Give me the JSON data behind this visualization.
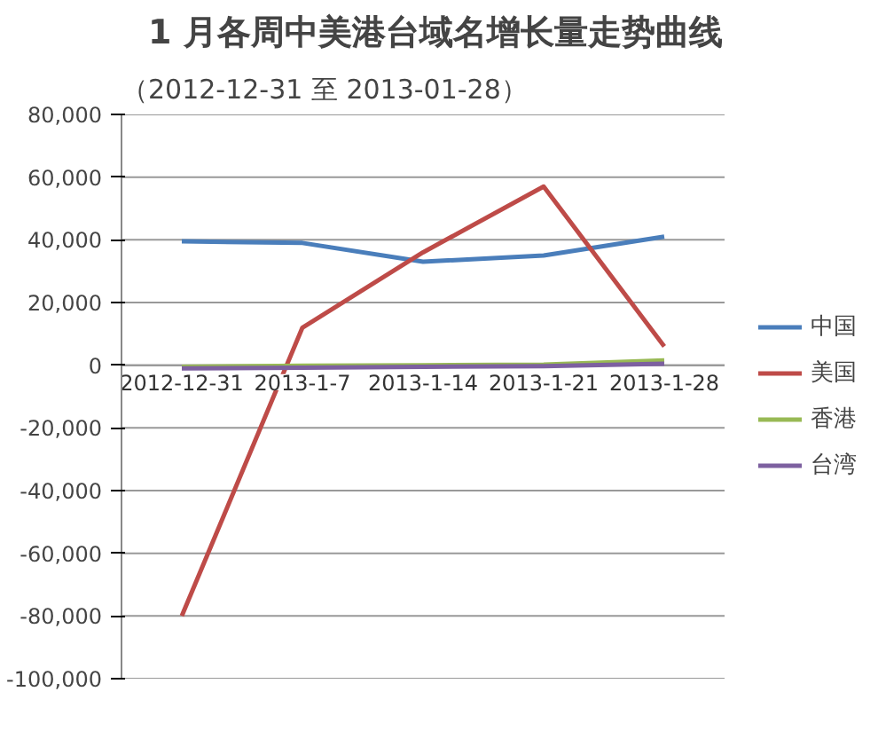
{
  "chart_data": {
    "type": "line",
    "title": "1 月各周中美港台域名增长量走势曲线",
    "subtitle": "（2012-12-31 至 2013-01-28）",
    "categories": [
      "2012-12-31",
      "2013-1-7",
      "2013-1-14",
      "2013-1-21",
      "2013-1-28"
    ],
    "series": [
      {
        "name": "中国",
        "color": "#4a7ebb",
        "values": [
          39500,
          39000,
          33000,
          35000,
          41000
        ]
      },
      {
        "name": "美国",
        "color": "#be4b48",
        "values": [
          -80000,
          12000,
          36000,
          57000,
          6000
        ]
      },
      {
        "name": "香港",
        "color": "#98b954",
        "values": [
          -500,
          -200,
          0,
          200,
          1500
        ]
      },
      {
        "name": "台湾",
        "color": "#7d60a0",
        "values": [
          -1000,
          -800,
          -500,
          -300,
          500
        ]
      }
    ],
    "ylim": [
      -100000,
      80000
    ],
    "yticks": [
      {
        "value": -100000,
        "label": "-100,000"
      },
      {
        "value": -80000,
        "label": "-80,000"
      },
      {
        "value": -60000,
        "label": "-60,000"
      },
      {
        "value": -40000,
        "label": "-40,000"
      },
      {
        "value": -20000,
        "label": "-20,000"
      },
      0,
      {
        "value": 20000,
        "label": "20,000"
      },
      {
        "value": 40000,
        "label": "40,000"
      },
      {
        "value": 60000,
        "label": "60,000"
      },
      {
        "value": 80000,
        "label": "80,000"
      }
    ],
    "grid": "y",
    "legend": "right",
    "marker": "none",
    "line_style": "solid"
  }
}
